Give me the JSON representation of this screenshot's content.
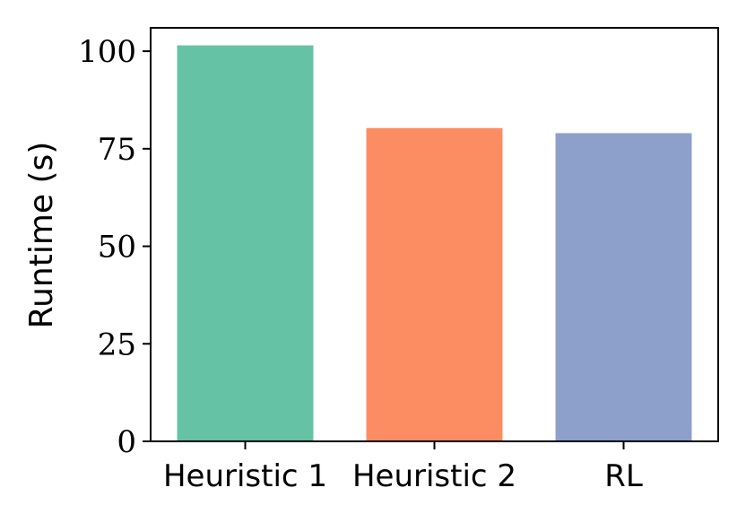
{
  "chart_data": {
    "type": "bar",
    "categories": [
      "Heuristic 1",
      "Heuristic 2",
      "RL"
    ],
    "values": [
      101.5,
      80.3,
      79.0
    ],
    "colors": [
      "#66c2a5",
      "#fc8d62",
      "#8da0cb"
    ],
    "title": "",
    "xlabel": "",
    "ylabel": "Runtime (s)",
    "ylim": [
      0,
      106
    ],
    "yticks": [
      0,
      25,
      50,
      75,
      100
    ],
    "grid": false
  }
}
